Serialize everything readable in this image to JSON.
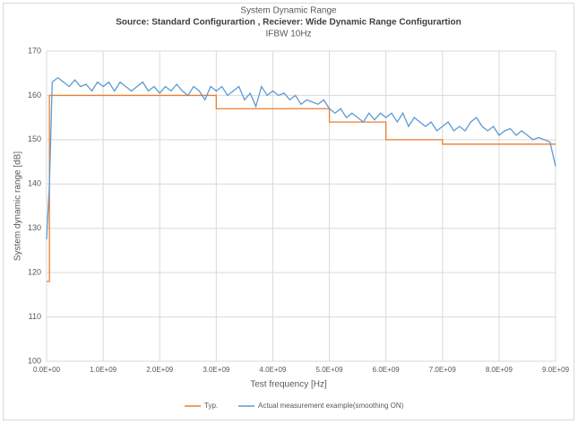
{
  "chart_data": {
    "type": "line",
    "title": "System Dynamic Range",
    "subtitle": "Source: Standard Configurartion , Reciever: Wide Dynamic Range Configurartion",
    "annotation": "IFBW 10Hz",
    "x_label": "Test frequency [Hz]",
    "y_label": "System dynamic range [dB]",
    "xlim": [
      0,
      9000000000.0
    ],
    "ylim": [
      100,
      170
    ],
    "xticks": [
      {
        "value": 0,
        "label": "0.0E+00"
      },
      {
        "value": 1000000000.0,
        "label": "1.0E+09"
      },
      {
        "value": 2000000000.0,
        "label": "2.0E+09"
      },
      {
        "value": 3000000000.0,
        "label": "3.0E+09"
      },
      {
        "value": 4000000000.0,
        "label": "4.0E+09"
      },
      {
        "value": 5000000000.0,
        "label": "5.0E+09"
      },
      {
        "value": 6000000000.0,
        "label": "6.0E+09"
      },
      {
        "value": 7000000000.0,
        "label": "7.0E+09"
      },
      {
        "value": 8000000000.0,
        "label": "8.0E+09"
      },
      {
        "value": 9000000000.0,
        "label": "9.0E+09"
      }
    ],
    "yticks": [
      100,
      110,
      120,
      130,
      140,
      150,
      160,
      170
    ],
    "grid": true,
    "legend": "bottom",
    "series": [
      {
        "name": "Typ.",
        "color": "#ed7d31",
        "x": [
          0,
          50000000.0,
          50000000.0,
          3000000000.0,
          3000000000.0,
          5000000000.0,
          5000000000.0,
          6000000000.0,
          6000000000.0,
          7000000000.0,
          7000000000.0,
          9000000000.0
        ],
        "values": [
          118,
          118,
          160,
          160,
          157,
          157,
          154,
          154,
          150,
          150,
          149,
          149
        ]
      },
      {
        "name": "Actual measurement example(smoothing ON)",
        "color": "#5b9bd5",
        "x": [
          0,
          50000000.0,
          100000000.0,
          200000000.0,
          300000000.0,
          400000000.0,
          500000000.0,
          600000000.0,
          700000000.0,
          800000000.0,
          900000000.0,
          1000000000.0,
          1100000000.0,
          1200000000.0,
          1300000000.0,
          1400000000.0,
          1500000000.0,
          1600000000.0,
          1700000000.0,
          1800000000.0,
          1900000000.0,
          2000000000.0,
          2100000000.0,
          2200000000.0,
          2300000000.0,
          2400000000.0,
          2500000000.0,
          2600000000.0,
          2700000000.0,
          2800000000.0,
          2900000000.0,
          3000000000.0,
          3100000000.0,
          3200000000.0,
          3300000000.0,
          3400000000.0,
          3500000000.0,
          3600000000.0,
          3700000000.0,
          3800000000.0,
          3900000000.0,
          4000000000.0,
          4100000000.0,
          4200000000.0,
          4300000000.0,
          4400000000.0,
          4500000000.0,
          4600000000.0,
          4700000000.0,
          4800000000.0,
          4900000000.0,
          5000000000.0,
          5100000000.0,
          5200000000.0,
          5300000000.0,
          5400000000.0,
          5500000000.0,
          5600000000.0,
          5700000000.0,
          5800000000.0,
          5900000000.0,
          6000000000.0,
          6100000000.0,
          6200000000.0,
          6300000000.0,
          6400000000.0,
          6500000000.0,
          6600000000.0,
          6700000000.0,
          6800000000.0,
          6900000000.0,
          7000000000.0,
          7100000000.0,
          7200000000.0,
          7300000000.0,
          7400000000.0,
          7500000000.0,
          7600000000.0,
          7700000000.0,
          7800000000.0,
          7900000000.0,
          8000000000.0,
          8100000000.0,
          8200000000.0,
          8300000000.0,
          8400000000.0,
          8500000000.0,
          8600000000.0,
          8700000000.0,
          8800000000.0,
          8900000000.0,
          9000000000.0
        ],
        "values": [
          127.5,
          140,
          163,
          164,
          163,
          162,
          163.5,
          162,
          162.5,
          161,
          163,
          162,
          163,
          161,
          163,
          162,
          161,
          162,
          163,
          161,
          162,
          160.5,
          162,
          161,
          162.5,
          161,
          160,
          162,
          161,
          159,
          162,
          161,
          162,
          160,
          161,
          162,
          159,
          160.5,
          157.5,
          162,
          160,
          161,
          160,
          160.5,
          159,
          160,
          158,
          159,
          158.5,
          158,
          159,
          157,
          156,
          157,
          155,
          156,
          155,
          154,
          156,
          154.5,
          156,
          155,
          156,
          154,
          156,
          153,
          155,
          154,
          153,
          154,
          152,
          153,
          154,
          152,
          153,
          152,
          154,
          155,
          153,
          152,
          153,
          151,
          152,
          152.5,
          151,
          152,
          151,
          150,
          150.5,
          150,
          149.5,
          144
        ]
      }
    ]
  }
}
